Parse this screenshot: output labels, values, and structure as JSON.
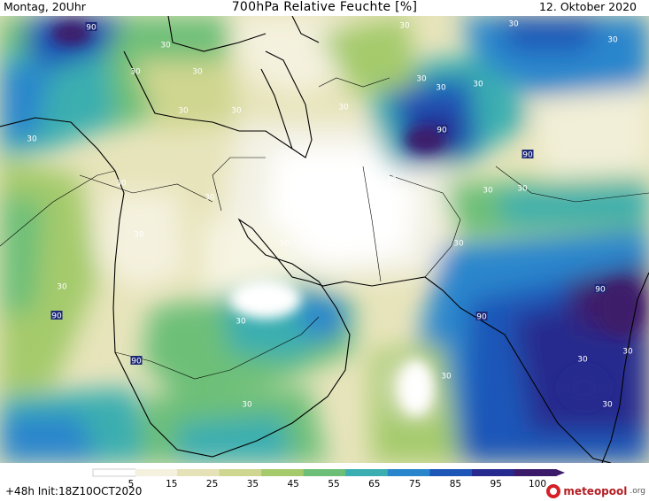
{
  "header": {
    "left": "Montag, 20Uhr",
    "center": "700hPa Relative Feuchte [%]",
    "right": "12. Oktober 2020"
  },
  "footer": {
    "left": "+48h Init:18Z10OCT2020",
    "brand_name": "meteopool",
    "brand_tld": ".org"
  },
  "legend": {
    "ticks": [
      "5",
      "15",
      "25",
      "35",
      "45",
      "55",
      "65",
      "75",
      "85",
      "95",
      "100"
    ],
    "colors": [
      "#ffffff",
      "#f4f1de",
      "#e6e2b8",
      "#cfd68f",
      "#a4ca6c",
      "#6dbf78",
      "#3aaeb0",
      "#2a86cc",
      "#1e56b8",
      "#262a8e",
      "#3c1a6a"
    ]
  },
  "contour_labels": [
    "90",
    "30",
    "30",
    "30",
    "30",
    "30",
    "90",
    "30",
    "30",
    "30",
    "30",
    "30",
    "30",
    "30",
    "30",
    "30",
    "30",
    "30",
    "30",
    "30",
    "90",
    "30",
    "30",
    "90",
    "90",
    "30",
    "30",
    "90",
    "90",
    "30",
    "30",
    "30",
    "30",
    "30",
    "30"
  ]
}
